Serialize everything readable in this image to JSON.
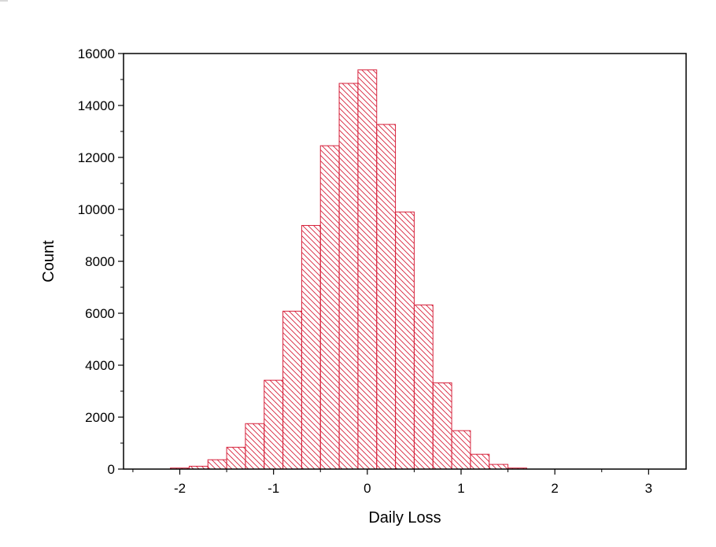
{
  "chart_data": {
    "type": "bar",
    "title": "",
    "xlabel": "Daily Loss",
    "ylabel": "Count",
    "xlim": [
      -2.6,
      3.4
    ],
    "ylim": [
      0,
      16000
    ],
    "grid": false,
    "legend": "none",
    "bar_color": "#d6203a",
    "bar_pattern": "diagonal-hatch",
    "bin_width": 0.2,
    "bins": [
      {
        "x0": -2.1,
        "x1": -1.9,
        "count": 40
      },
      {
        "x0": -1.9,
        "x1": -1.7,
        "count": 110
      },
      {
        "x0": -1.7,
        "x1": -1.5,
        "count": 360
      },
      {
        "x0": -1.5,
        "x1": -1.3,
        "count": 840
      },
      {
        "x0": -1.3,
        "x1": -1.1,
        "count": 1750
      },
      {
        "x0": -1.1,
        "x1": -0.9,
        "count": 3420
      },
      {
        "x0": -0.9,
        "x1": -0.7,
        "count": 6080
      },
      {
        "x0": -0.7,
        "x1": -0.5,
        "count": 9380
      },
      {
        "x0": -0.5,
        "x1": -0.3,
        "count": 12450
      },
      {
        "x0": -0.3,
        "x1": -0.1,
        "count": 14850
      },
      {
        "x0": -0.1,
        "x1": 0.1,
        "count": 15370
      },
      {
        "x0": 0.1,
        "x1": 0.3,
        "count": 13270
      },
      {
        "x0": 0.3,
        "x1": 0.5,
        "count": 9900
      },
      {
        "x0": 0.5,
        "x1": 0.7,
        "count": 6320
      },
      {
        "x0": 0.7,
        "x1": 0.9,
        "count": 3320
      },
      {
        "x0": 0.9,
        "x1": 1.1,
        "count": 1480
      },
      {
        "x0": 1.1,
        "x1": 1.3,
        "count": 570
      },
      {
        "x0": 1.3,
        "x1": 1.5,
        "count": 180
      },
      {
        "x0": 1.5,
        "x1": 1.7,
        "count": 40
      }
    ],
    "x_ticks": [
      {
        "value": -2,
        "label": "-2"
      },
      {
        "value": -1,
        "label": "-1"
      },
      {
        "value": 0,
        "label": "0"
      },
      {
        "value": 1,
        "label": "1"
      },
      {
        "value": 2,
        "label": "2"
      },
      {
        "value": 3,
        "label": "3"
      }
    ],
    "x_minor_ticks": [
      -2.5,
      -1.5,
      -0.5,
      0.5,
      1.5,
      2.5
    ],
    "y_ticks": [
      {
        "value": 0,
        "label": "0"
      },
      {
        "value": 2000,
        "label": "2000"
      },
      {
        "value": 4000,
        "label": "4000"
      },
      {
        "value": 6000,
        "label": "6000"
      },
      {
        "value": 8000,
        "label": "8000"
      },
      {
        "value": 10000,
        "label": "10000"
      },
      {
        "value": 12000,
        "label": "12000"
      },
      {
        "value": 14000,
        "label": "14000"
      },
      {
        "value": 16000,
        "label": "16000"
      }
    ],
    "y_minor_ticks": [
      1000,
      3000,
      5000,
      7000,
      9000,
      11000,
      13000,
      15000
    ]
  }
}
